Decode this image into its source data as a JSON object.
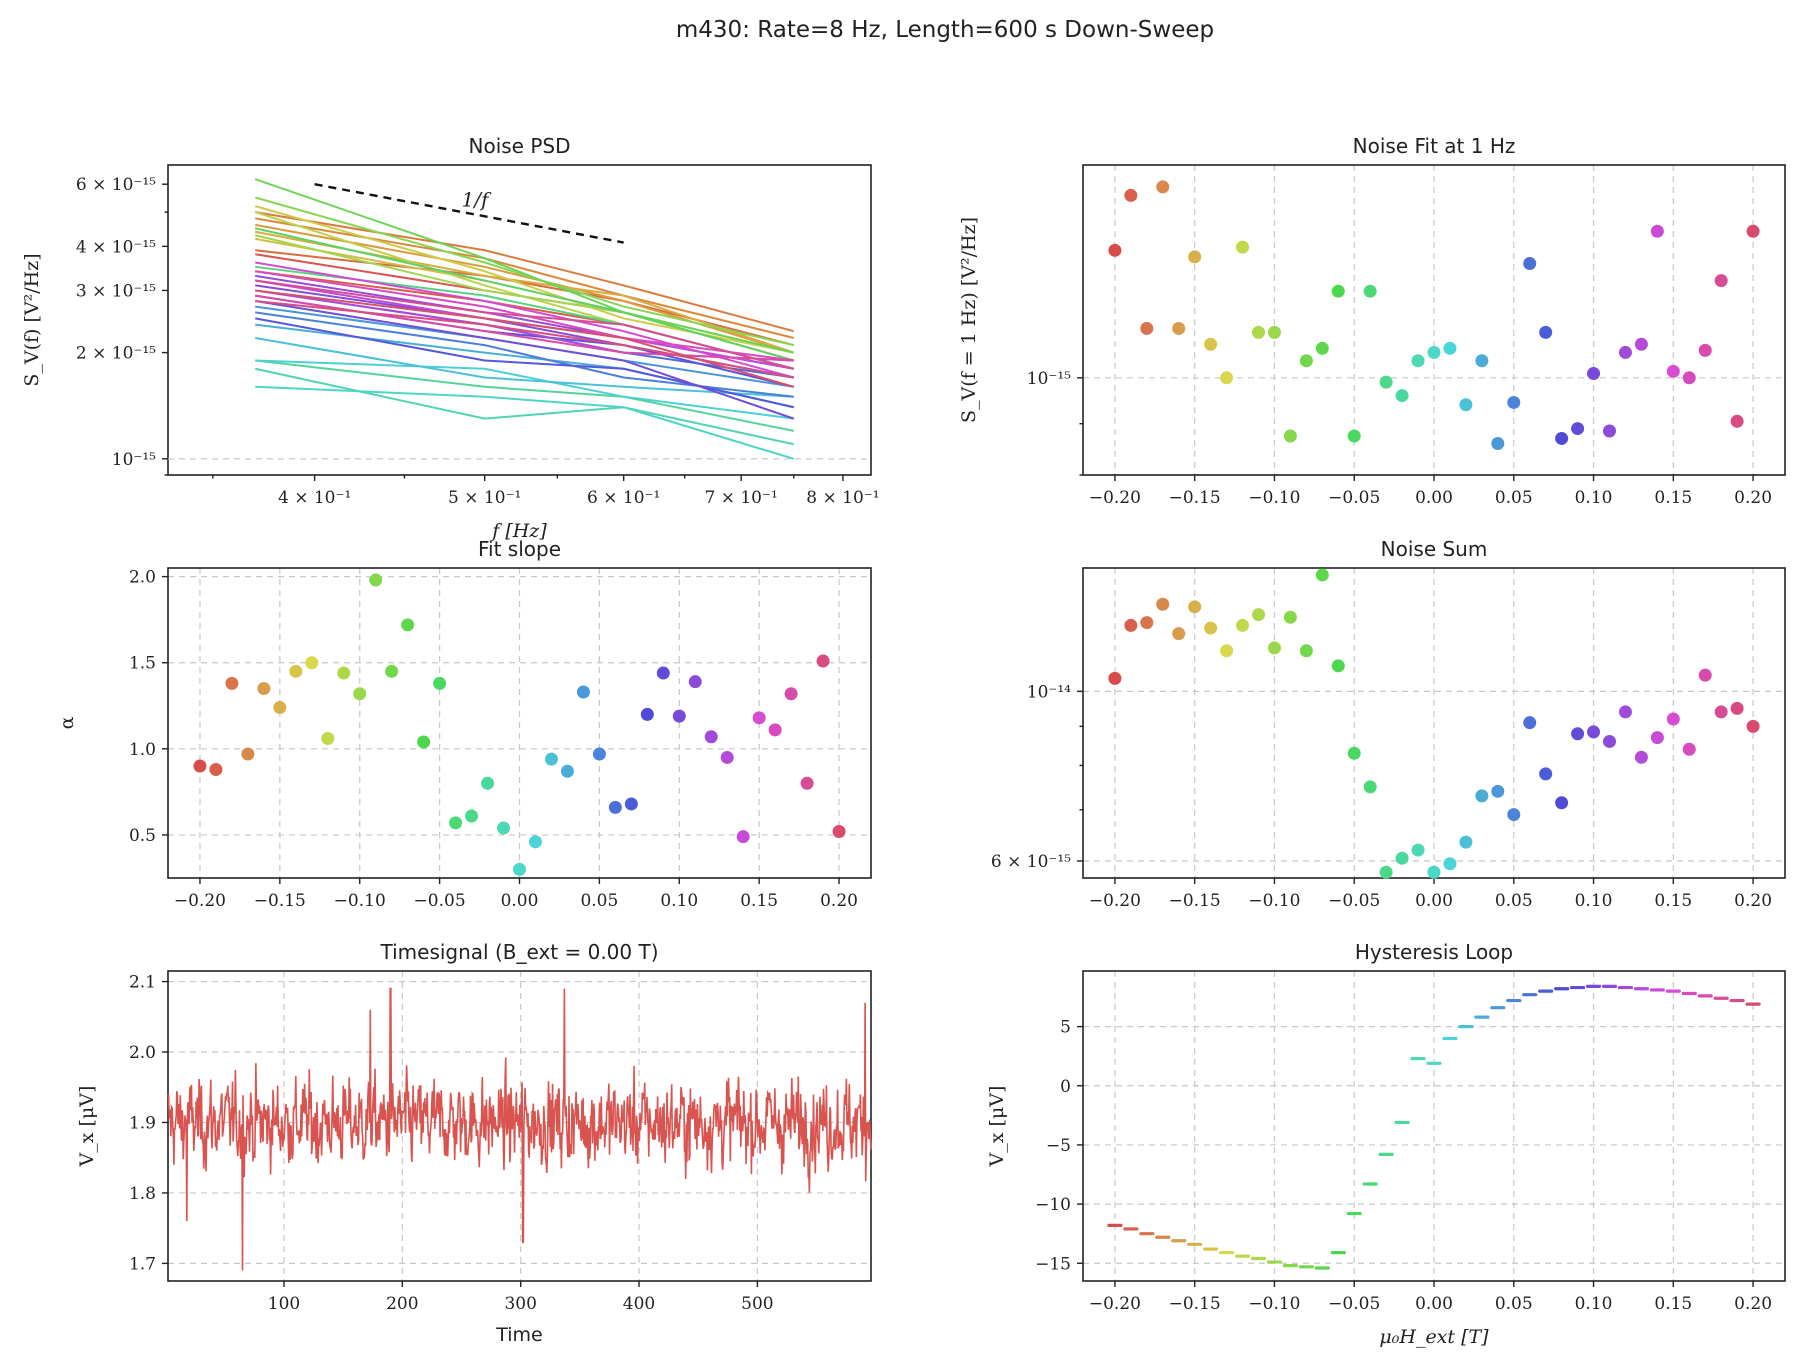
{
  "figure": {
    "suptitle": "m430: Rate=8 Hz, Length=600 s Down-Sweep"
  },
  "chart_data": [
    {
      "id": "psd",
      "type": "line",
      "title": "Noise PSD",
      "xlabel": "f [Hz]",
      "ylabel": "S_V(f) [V²/Hz]",
      "xscale": "log",
      "yscale": "log",
      "xlim": [
        0.33,
        0.83
      ],
      "ylim": [
        9e-16,
        6.8e-15
      ],
      "xticks": [
        0.4,
        0.5,
        0.6,
        0.7,
        0.8
      ],
      "xtick_labels": [
        "4 × 10⁻¹",
        "5 × 10⁻¹",
        "6 × 10⁻¹",
        "7 × 10⁻¹",
        "8 × 10⁻¹"
      ],
      "yticks": [
        1e-15,
        2e-15,
        3e-15,
        4e-15,
        6e-15
      ],
      "ytick_labels": [
        "10⁻¹⁵",
        "2 × 10⁻¹⁵",
        "3 × 10⁻¹⁵",
        "4 × 10⁻¹⁵",
        "6 × 10⁻¹⁵"
      ],
      "reference": {
        "label": "1/f",
        "x": [
          0.4,
          0.6
        ],
        "y": [
          6e-15,
          4.1e-15
        ]
      },
      "x": [
        0.37,
        0.5,
        0.6,
        0.75
      ],
      "series_note": "one PSD curve per field step, colored by field",
      "series": [
        {
          "color": "#d9534f",
          "values": [
            3.8e-15,
            3e-15,
            2.6e-15,
            1.9e-15
          ]
        },
        {
          "color": "#db5f45",
          "values": [
            3.4e-15,
            2.8e-15,
            2.4e-15,
            1.8e-15
          ]
        },
        {
          "color": "#dc6c3f",
          "values": [
            3.9e-15,
            3.3e-15,
            2.8e-15,
            2.1e-15
          ]
        },
        {
          "color": "#dc7a3c",
          "values": [
            5e-15,
            3.9e-15,
            3.1e-15,
            2.3e-15
          ]
        },
        {
          "color": "#dc893b",
          "values": [
            4.8e-15,
            3.7e-15,
            2.9e-15,
            2.2e-15
          ]
        },
        {
          "color": "#db9a3d",
          "values": [
            4.6e-15,
            3.5e-15,
            2.8e-15,
            2e-15
          ]
        },
        {
          "color": "#d9ab40",
          "values": [
            4.4e-15,
            3.3e-15,
            2.9e-15,
            2e-15
          ]
        },
        {
          "color": "#d5bd46",
          "values": [
            4.2e-15,
            3.2e-15,
            2.6e-15,
            1.9e-15
          ]
        },
        {
          "color": "#cfcc4b",
          "values": [
            5.2e-15,
            3.4e-15,
            2.5e-15,
            2e-15
          ]
        },
        {
          "color": "#bdd24d",
          "values": [
            5e-15,
            3.1e-15,
            2.4e-15,
            1.8e-15
          ]
        },
        {
          "color": "#a2d64f",
          "values": [
            4.3e-15,
            3e-15,
            2.6e-15,
            2e-15
          ]
        },
        {
          "color": "#86d652",
          "values": [
            5.5e-15,
            3.6e-15,
            2.7e-15,
            2.1e-15
          ]
        },
        {
          "color": "#6dd556",
          "values": [
            6.2e-15,
            3.7e-15,
            2.6e-15,
            2e-15
          ]
        },
        {
          "color": "#5bd365",
          "values": [
            4.5e-15,
            3.2e-15,
            2.6e-15,
            1.9e-15
          ]
        },
        {
          "color": "#55d380",
          "values": [
            3.5e-15,
            2.9e-15,
            2.4e-15,
            1.8e-15
          ]
        },
        {
          "color": "#52d49a",
          "values": [
            1.9e-15,
            1.6e-15,
            1.5e-15,
            1.2e-15
          ]
        },
        {
          "color": "#50d4b3",
          "values": [
            1.8e-15,
            1.3e-15,
            1.4e-15,
            1.1e-15
          ]
        },
        {
          "color": "#4fd4c8",
          "values": [
            1.6e-15,
            1.5e-15,
            1.4e-15,
            1e-15
          ]
        },
        {
          "color": "#4cd0d6",
          "values": [
            1.9e-15,
            1.8e-15,
            1.5e-15,
            1.3e-15
          ]
        },
        {
          "color": "#4ac0d9",
          "values": [
            2.2e-15,
            1.7e-15,
            1.6e-15,
            1.5e-15
          ]
        },
        {
          "color": "#4aacd9",
          "values": [
            2.4e-15,
            2e-15,
            1.8e-15,
            1.4e-15
          ]
        },
        {
          "color": "#4a96d9",
          "values": [
            2.7e-15,
            2.2e-15,
            1.9e-15,
            1.6e-15
          ]
        },
        {
          "color": "#4b80d9",
          "values": [
            2.6e-15,
            2.1e-15,
            1.7e-15,
            1.5e-15
          ]
        },
        {
          "color": "#4e6cd9",
          "values": [
            3e-15,
            2.4e-15,
            2e-15,
            1.7e-15
          ]
        },
        {
          "color": "#5359d9",
          "values": [
            2.5e-15,
            1.9e-15,
            1.8e-15,
            1.4e-15
          ]
        },
        {
          "color": "#5e51d9",
          "values": [
            2.9e-15,
            2.3e-15,
            2.1e-15,
            1.6e-15
          ]
        },
        {
          "color": "#704fd9",
          "values": [
            2.8e-15,
            2.2e-15,
            1.9e-15,
            1.3e-15
          ]
        },
        {
          "color": "#834dd9",
          "values": [
            3.1e-15,
            2.5e-15,
            2.1e-15,
            1.7e-15
          ]
        },
        {
          "color": "#974cd9",
          "values": [
            3.3e-15,
            2.6e-15,
            2.2e-15,
            1.8e-15
          ]
        },
        {
          "color": "#ab4bd9",
          "values": [
            3e-15,
            2.4e-15,
            2e-15,
            1.9e-15
          ]
        },
        {
          "color": "#bf4ad9",
          "values": [
            3.2e-15,
            2.5e-15,
            2.2e-15,
            1.8e-15
          ]
        },
        {
          "color": "#d24ad3",
          "values": [
            3.6e-15,
            2.8e-15,
            2.3e-15,
            1.7e-15
          ]
        },
        {
          "color": "#d94ac0",
          "values": [
            3.4e-15,
            2.7e-15,
            2.2e-15,
            1.9e-15
          ]
        },
        {
          "color": "#da4aab",
          "values": [
            2.9e-15,
            2.3e-15,
            2e-15,
            1.9e-15
          ]
        },
        {
          "color": "#da4b96",
          "values": [
            3.2e-15,
            2.6e-15,
            2.4e-15,
            1.8e-15
          ]
        },
        {
          "color": "#d94d80",
          "values": [
            2.8e-15,
            2.4e-15,
            2.1e-15,
            1.7e-15
          ]
        },
        {
          "color": "#d9506a",
          "values": [
            3e-15,
            2.5e-15,
            2.2e-15,
            1.6e-15
          ]
        }
      ]
    },
    {
      "id": "fit1hz",
      "type": "scatter",
      "title": "Noise Fit at 1 Hz",
      "xlabel": "",
      "ylabel": "S_V(f = 1 Hz) [V²/Hz]",
      "yscale": "log",
      "xlim": [
        -0.22,
        0.22
      ],
      "ylim": [
        8e-16,
        1.63e-15
      ],
      "xticks": [
        -0.2,
        -0.15,
        -0.1,
        -0.05,
        0.0,
        0.05,
        0.1,
        0.15,
        0.2
      ],
      "xtick_labels": [
        "−0.20",
        "−0.15",
        "−0.10",
        "−0.05",
        "0.00",
        "0.05",
        "0.10",
        "0.15",
        "0.20"
      ],
      "yticks": [
        1e-15
      ],
      "ytick_labels": [
        "10⁻¹⁵"
      ],
      "x": [
        -0.2,
        -0.19,
        -0.18,
        -0.17,
        -0.16,
        -0.15,
        -0.14,
        -0.13,
        -0.12,
        -0.11,
        -0.1,
        -0.09,
        -0.08,
        -0.07,
        -0.06,
        -0.05,
        -0.04,
        -0.03,
        -0.02,
        -0.01,
        0.0,
        0.01,
        0.02,
        0.03,
        0.04,
        0.05,
        0.06,
        0.07,
        0.08,
        0.09,
        0.1,
        0.11,
        0.12,
        0.13,
        0.14,
        0.15,
        0.16,
        0.17,
        0.18,
        0.19,
        0.2
      ],
      "values": [
        1.34e-15,
        1.52e-15,
        1.12e-15,
        1.55e-15,
        1.12e-15,
        1.32e-15,
        1.08e-15,
        1e-15,
        1.35e-15,
        1.11e-15,
        1.11e-15,
        8.75e-16,
        1.04e-15,
        1.07e-15,
        1.22e-15,
        8.75e-16,
        1.22e-15,
        9.9e-16,
        9.6e-16,
        1.04e-15,
        1.06e-15,
        1.07e-15,
        9.4e-16,
        1.04e-15,
        8.6e-16,
        9.45e-16,
        1.3e-15,
        1.11e-15,
        8.7e-16,
        8.9e-16,
        1.01e-15,
        8.85e-16,
        1.06e-15,
        1.08e-15,
        1.4e-15,
        1.015e-15,
        1e-15,
        1.065e-15,
        1.25e-15,
        9.05e-16,
        1.4e-15
      ]
    },
    {
      "id": "slope",
      "type": "scatter",
      "title": "Fit slope",
      "xlabel": "",
      "ylabel": "α",
      "xlim": [
        -0.22,
        0.22
      ],
      "ylim": [
        0.25,
        2.05
      ],
      "xticks": [
        -0.2,
        -0.15,
        -0.1,
        -0.05,
        0.0,
        0.05,
        0.1,
        0.15,
        0.2
      ],
      "xtick_labels": [
        "−0.20",
        "−0.15",
        "−0.10",
        "−0.05",
        "0.00",
        "0.05",
        "0.10",
        "0.15",
        "0.20"
      ],
      "yticks": [
        0.5,
        1.0,
        1.5,
        2.0
      ],
      "ytick_labels": [
        "0.5",
        "1.0",
        "1.5",
        "2.0"
      ],
      "x": [
        -0.2,
        -0.19,
        -0.18,
        -0.17,
        -0.16,
        -0.15,
        -0.14,
        -0.13,
        -0.12,
        -0.11,
        -0.1,
        -0.09,
        -0.08,
        -0.07,
        -0.06,
        -0.05,
        -0.04,
        -0.03,
        -0.02,
        -0.01,
        0.0,
        0.01,
        0.02,
        0.03,
        0.04,
        0.05,
        0.06,
        0.07,
        0.08,
        0.09,
        0.1,
        0.11,
        0.12,
        0.13,
        0.14,
        0.15,
        0.16,
        0.17,
        0.18,
        0.19,
        0.2
      ],
      "values": [
        0.9,
        0.88,
        1.38,
        0.97,
        1.35,
        1.24,
        1.45,
        1.5,
        1.06,
        1.44,
        1.32,
        1.98,
        1.45,
        1.72,
        1.04,
        1.38,
        0.57,
        0.61,
        0.8,
        0.54,
        0.3,
        0.46,
        0.94,
        0.87,
        1.33,
        0.97,
        0.66,
        0.68,
        1.2,
        1.44,
        1.19,
        1.39,
        1.07,
        0.95,
        0.49,
        1.18,
        1.11,
        1.32,
        0.8,
        1.51,
        0.52
      ]
    },
    {
      "id": "noisesum",
      "type": "scatter",
      "title": "Noise Sum",
      "xlabel": "",
      "ylabel": "",
      "yscale": "log",
      "xlim": [
        -0.22,
        0.22
      ],
      "ylim": [
        5.7e-15,
        1.45e-14
      ],
      "xticks": [
        -0.2,
        -0.15,
        -0.1,
        -0.05,
        0.0,
        0.05,
        0.1,
        0.15,
        0.2
      ],
      "xtick_labels": [
        "−0.20",
        "−0.15",
        "−0.10",
        "−0.05",
        "0.00",
        "0.05",
        "0.10",
        "0.15",
        "0.20"
      ],
      "yticks": [
        6e-15,
        1e-14
      ],
      "ytick_labels": [
        "6 × 10⁻¹⁵",
        "10⁻¹⁴"
      ],
      "x": [
        -0.2,
        -0.19,
        -0.18,
        -0.17,
        -0.16,
        -0.15,
        -0.14,
        -0.13,
        -0.12,
        -0.11,
        -0.1,
        -0.09,
        -0.08,
        -0.07,
        -0.06,
        -0.05,
        -0.04,
        -0.03,
        -0.02,
        -0.01,
        0.0,
        0.01,
        0.02,
        0.03,
        0.04,
        0.05,
        0.06,
        0.07,
        0.08,
        0.09,
        0.1,
        0.11,
        0.12,
        0.13,
        0.14,
        0.15,
        0.16,
        0.17,
        0.18,
        0.19,
        0.2
      ],
      "values": [
        1.04e-14,
        1.22e-14,
        1.23e-14,
        1.3e-14,
        1.19e-14,
        1.29e-14,
        1.21e-14,
        1.13e-14,
        1.22e-14,
        1.26e-14,
        1.14e-14,
        1.25e-14,
        1.13e-14,
        1.42e-14,
        1.08e-14,
        8.3e-15,
        7.5e-15,
        5.8e-15,
        6.05e-15,
        6.2e-15,
        5.8e-15,
        5.95e-15,
        6.35e-15,
        7.3e-15,
        7.4e-15,
        6.9e-15,
        9.1e-15,
        7.8e-15,
        7.15e-15,
        8.8e-15,
        8.85e-15,
        8.6e-15,
        9.4e-15,
        8.2e-15,
        8.7e-15,
        9.2e-15,
        8.4e-15,
        1.05e-14,
        9.4e-15,
        9.5e-15,
        9e-15
      ]
    },
    {
      "id": "timesignal",
      "type": "line",
      "title": "Timesignal (B_ext = 0.00 T)",
      "xlabel": "Time",
      "ylabel": "V_x [μV]",
      "xlim": [
        2,
        596
      ],
      "ylim": [
        1.675,
        2.115
      ],
      "xticks": [
        100,
        200,
        300,
        400,
        500
      ],
      "xtick_labels": [
        "100",
        "200",
        "300",
        "400",
        "500"
      ],
      "yticks": [
        1.7,
        1.8,
        1.9,
        2.0,
        2.1
      ],
      "ytick_labels": [
        "1.7",
        "1.8",
        "1.9",
        "2.0",
        "2.1"
      ],
      "color": "#d9534f",
      "mean": 1.9,
      "std": 0.045,
      "samples": 1200,
      "spikes": [
        {
          "t": 65,
          "v": 1.69
        },
        {
          "t": 173,
          "v": 2.06
        },
        {
          "t": 190,
          "v": 2.09
        },
        {
          "t": 302,
          "v": 1.73
        },
        {
          "t": 337,
          "v": 2.09
        },
        {
          "t": 591,
          "v": 2.07
        },
        {
          "t": 18,
          "v": 1.76
        }
      ]
    },
    {
      "id": "hysteresis",
      "type": "scatter",
      "title": "Hysteresis Loop",
      "xlabel": "μ₀H_ext [T]",
      "ylabel": "V_x [μV]",
      "xlim": [
        -0.22,
        0.22
      ],
      "ylim": [
        -16.5,
        9.7
      ],
      "xticks": [
        -0.2,
        -0.15,
        -0.1,
        -0.05,
        0.0,
        0.05,
        0.1,
        0.15,
        0.2
      ],
      "xtick_labels": [
        "−0.20",
        "−0.15",
        "−0.10",
        "−0.05",
        "0.00",
        "0.05",
        "0.10",
        "0.15",
        "0.20"
      ],
      "yticks": [
        -15,
        -10,
        -5,
        0,
        5
      ],
      "ytick_labels": [
        "−15",
        "−10",
        "−5",
        "0",
        "5"
      ],
      "x": [
        -0.2,
        -0.19,
        -0.18,
        -0.17,
        -0.16,
        -0.15,
        -0.14,
        -0.13,
        -0.12,
        -0.11,
        -0.1,
        -0.09,
        -0.08,
        -0.07,
        -0.06,
        -0.05,
        -0.04,
        -0.03,
        -0.02,
        -0.01,
        0.0,
        0.01,
        0.02,
        0.03,
        0.04,
        0.05,
        0.06,
        0.07,
        0.08,
        0.09,
        0.1,
        0.11,
        0.12,
        0.13,
        0.14,
        0.15,
        0.16,
        0.17,
        0.18,
        0.19,
        0.2
      ],
      "values": [
        -11.8,
        -12.1,
        -12.5,
        -12.8,
        -13.1,
        -13.4,
        -13.8,
        -14.1,
        -14.4,
        -14.6,
        -14.9,
        -15.2,
        -15.3,
        -15.4,
        -14.1,
        -10.8,
        -8.3,
        -5.8,
        -3.1,
        2.3,
        1.9,
        4.0,
        5.0,
        5.8,
        6.6,
        7.2,
        7.7,
        8.0,
        8.2,
        8.3,
        8.4,
        8.4,
        8.3,
        8.2,
        8.1,
        8.0,
        7.8,
        7.6,
        7.4,
        7.2,
        6.9
      ]
    }
  ]
}
